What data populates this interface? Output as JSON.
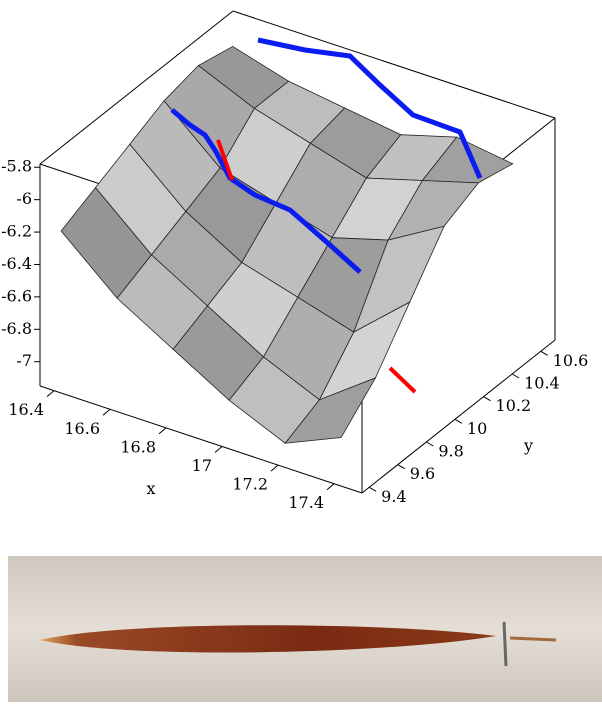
{
  "chart_data": {
    "type": "surface",
    "xlabel": "x",
    "ylabel": "y",
    "xlim": [
      16.35,
      17.5
    ],
    "ylim": [
      9.35,
      10.7
    ],
    "zlim": [
      -7.15,
      -5.78
    ],
    "xticks": [
      16.4,
      16.6,
      16.8,
      17,
      17.2,
      17.4
    ],
    "yticks": [
      9.4,
      9.6,
      9.8,
      10,
      10.2,
      10.4,
      10.6
    ],
    "zticks": [
      -5.8,
      -6,
      -6.2,
      -6.4,
      -6.6,
      -6.8,
      -7
    ],
    "x": [
      16.4,
      16.6,
      16.8,
      17.0,
      17.2,
      17.4
    ],
    "y": [
      9.4,
      9.64,
      9.88,
      10.12,
      10.36,
      10.6
    ],
    "z": [
      [
        -6.2,
        -6.5,
        -6.7,
        -6.9,
        -7.05,
        -6.9
      ],
      [
        -6.1,
        -6.4,
        -6.6,
        -6.8,
        -6.95,
        -6.7
      ],
      [
        -6.0,
        -6.3,
        -6.5,
        -6.6,
        -6.7,
        -6.4
      ],
      [
        -5.9,
        -6.2,
        -6.3,
        -6.4,
        -6.3,
        -6.1
      ],
      [
        -5.85,
        -6.0,
        -6.1,
        -6.2,
        -6.1,
        -6.0
      ],
      [
        -5.9,
        -6.0,
        -6.05,
        -6.1,
        -6.0,
        -6.05
      ]
    ],
    "color": "#b8b8b8"
  }
}
